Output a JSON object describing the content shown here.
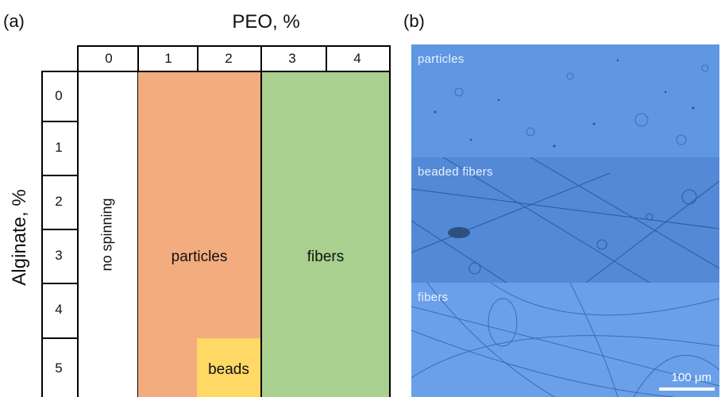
{
  "panel_a_label": "(a)",
  "panel_b_label": "(b)",
  "x_title": "PEO, %",
  "y_title": "Alginate, %",
  "peo_levels": [
    "0",
    "1",
    "2",
    "3",
    "4"
  ],
  "alginate_levels": [
    "0",
    "1",
    "2",
    "3",
    "4",
    "5"
  ],
  "regions": {
    "no_spinning": "no spinning",
    "particles": "particles",
    "fibers": "fibers",
    "beads": "beads"
  },
  "region_colors": {
    "no_spinning": "#ffffff",
    "particles": "#f2ac7e",
    "fibers": "#a9d08e",
    "beads": "#ffd866"
  },
  "micrographs": [
    {
      "label": "particles"
    },
    {
      "label": "beaded fibers"
    },
    {
      "label": "fibers"
    }
  ],
  "scale_bar": "100 μm"
}
